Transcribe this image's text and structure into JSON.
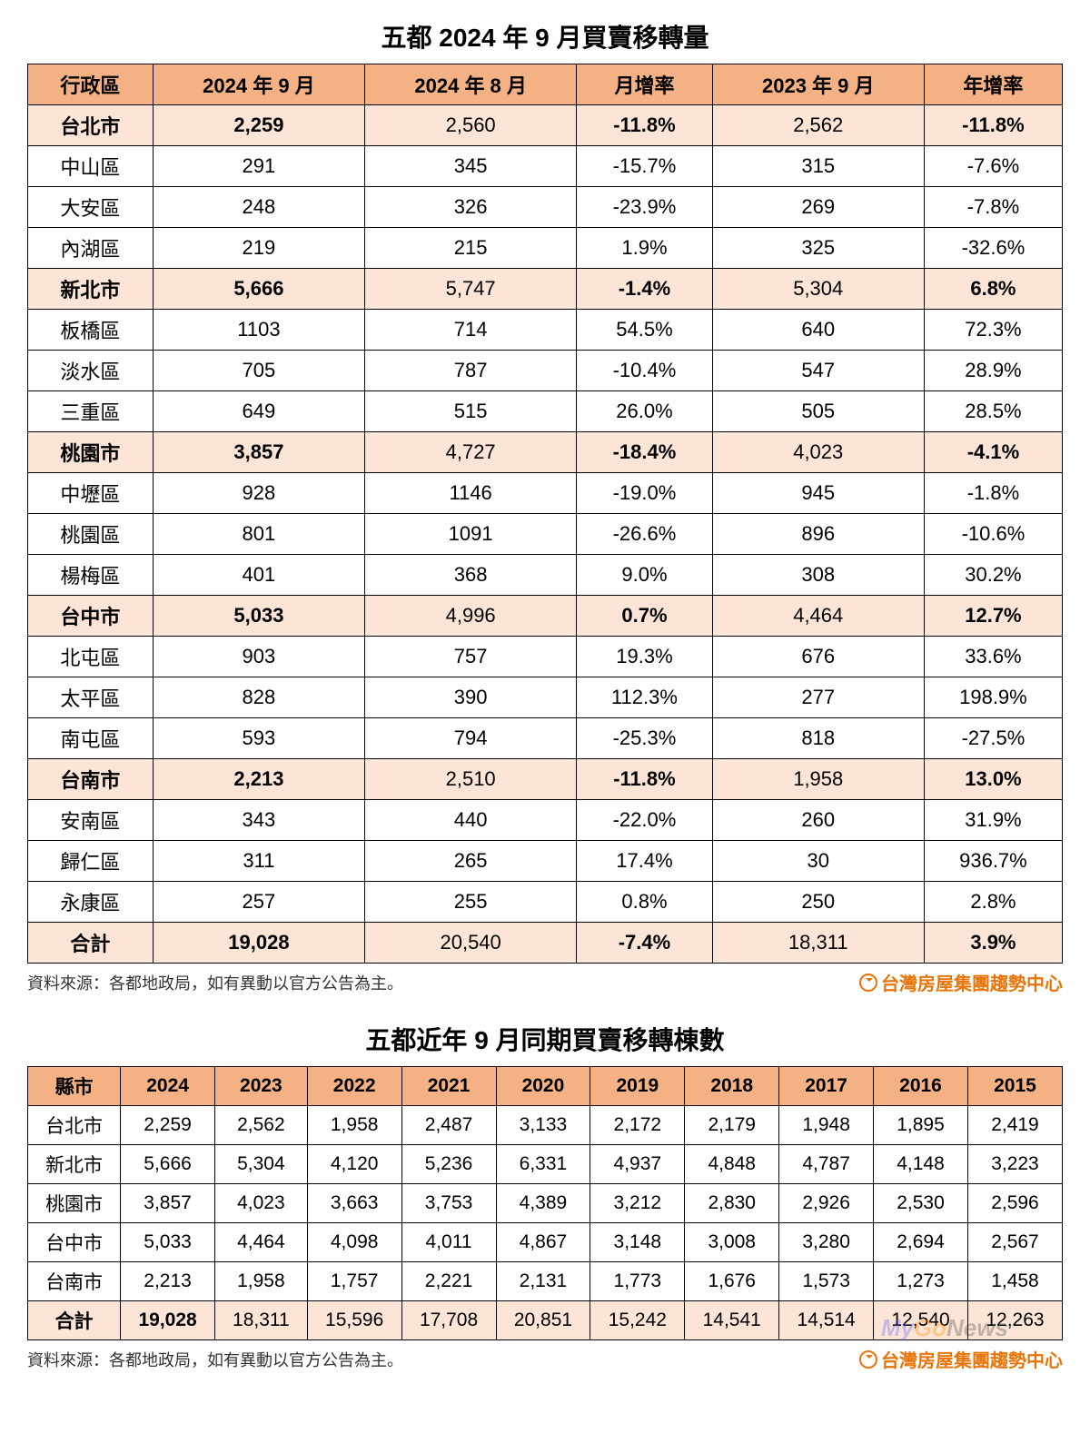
{
  "colors": {
    "header_bg": "#f4b183",
    "highlight_bg": "#fce5d6",
    "border": "#000000",
    "brand": "#e8750a",
    "text": "#000000"
  },
  "typography": {
    "title_fontsize": 28,
    "cell_fontsize": 22,
    "footer_fontsize": 18
  },
  "table1": {
    "title": "五都 2024 年 9 月買賣移轉量",
    "columns": [
      "行政區",
      "2024 年 9 月",
      "2024 年 8 月",
      "月增率",
      "2023 年 9 月",
      "年增率"
    ],
    "col_bold": [
      false,
      true,
      false,
      false,
      false,
      false
    ],
    "rows": [
      {
        "hl": true,
        "bold": true,
        "cells": [
          "台北市",
          "2,259",
          "2,560",
          "-11.8%",
          "2,562",
          "-11.8%"
        ]
      },
      {
        "hl": false,
        "bold": false,
        "cells": [
          "中山區",
          "291",
          "345",
          "-15.7%",
          "315",
          "-7.6%"
        ]
      },
      {
        "hl": false,
        "bold": false,
        "cells": [
          "大安區",
          "248",
          "326",
          "-23.9%",
          "269",
          "-7.8%"
        ]
      },
      {
        "hl": false,
        "bold": false,
        "cells": [
          "內湖區",
          "219",
          "215",
          "1.9%",
          "325",
          "-32.6%"
        ]
      },
      {
        "hl": true,
        "bold": true,
        "cells": [
          "新北市",
          "5,666",
          "5,747",
          "-1.4%",
          "5,304",
          "6.8%"
        ]
      },
      {
        "hl": false,
        "bold": false,
        "cells": [
          "板橋區",
          "1103",
          "714",
          "54.5%",
          "640",
          "72.3%"
        ]
      },
      {
        "hl": false,
        "bold": false,
        "cells": [
          "淡水區",
          "705",
          "787",
          "-10.4%",
          "547",
          "28.9%"
        ]
      },
      {
        "hl": false,
        "bold": false,
        "cells": [
          "三重區",
          "649",
          "515",
          "26.0%",
          "505",
          "28.5%"
        ]
      },
      {
        "hl": true,
        "bold": true,
        "cells": [
          "桃園市",
          "3,857",
          "4,727",
          "-18.4%",
          "4,023",
          "-4.1%"
        ]
      },
      {
        "hl": false,
        "bold": false,
        "cells": [
          "中壢區",
          "928",
          "1146",
          "-19.0%",
          "945",
          "-1.8%"
        ]
      },
      {
        "hl": false,
        "bold": false,
        "cells": [
          "桃園區",
          "801",
          "1091",
          "-26.6%",
          "896",
          "-10.6%"
        ]
      },
      {
        "hl": false,
        "bold": false,
        "cells": [
          "楊梅區",
          "401",
          "368",
          "9.0%",
          "308",
          "30.2%"
        ]
      },
      {
        "hl": true,
        "bold": true,
        "cells": [
          "台中市",
          "5,033",
          "4,996",
          "0.7%",
          "4,464",
          "12.7%"
        ]
      },
      {
        "hl": false,
        "bold": false,
        "cells": [
          "北屯區",
          "903",
          "757",
          "19.3%",
          "676",
          "33.6%"
        ]
      },
      {
        "hl": false,
        "bold": false,
        "cells": [
          "太平區",
          "828",
          "390",
          "112.3%",
          "277",
          "198.9%"
        ]
      },
      {
        "hl": false,
        "bold": false,
        "cells": [
          "南屯區",
          "593",
          "794",
          "-25.3%",
          "818",
          "-27.5%"
        ]
      },
      {
        "hl": true,
        "bold": true,
        "cells": [
          "台南市",
          "2,213",
          "2,510",
          "-11.8%",
          "1,958",
          "13.0%"
        ]
      },
      {
        "hl": false,
        "bold": false,
        "cells": [
          "安南區",
          "343",
          "440",
          "-22.0%",
          "260",
          "31.9%"
        ]
      },
      {
        "hl": false,
        "bold": false,
        "cells": [
          "歸仁區",
          "311",
          "265",
          "17.4%",
          "30",
          "936.7%"
        ]
      },
      {
        "hl": false,
        "bold": false,
        "cells": [
          "永康區",
          "257",
          "255",
          "0.8%",
          "250",
          "2.8%"
        ]
      },
      {
        "hl": true,
        "bold": true,
        "cells": [
          "合計",
          "19,028",
          "20,540",
          "-7.4%",
          "18,311",
          "3.9%"
        ]
      }
    ],
    "bold_cols_on_hl": [
      1,
      3,
      5
    ]
  },
  "table2": {
    "title": "五都近年 9 月同期買賣移轉棟數",
    "columns": [
      "縣市",
      "2024",
      "2023",
      "2022",
      "2021",
      "2020",
      "2019",
      "2018",
      "2017",
      "2016",
      "2015"
    ],
    "rows": [
      {
        "hl": false,
        "cells": [
          "台北市",
          "2,259",
          "2,562",
          "1,958",
          "2,487",
          "3,133",
          "2,172",
          "2,179",
          "1,948",
          "1,895",
          "2,419"
        ]
      },
      {
        "hl": false,
        "cells": [
          "新北市",
          "5,666",
          "5,304",
          "4,120",
          "5,236",
          "6,331",
          "4,937",
          "4,848",
          "4,787",
          "4,148",
          "3,223"
        ]
      },
      {
        "hl": false,
        "cells": [
          "桃園市",
          "3,857",
          "4,023",
          "3,663",
          "3,753",
          "4,389",
          "3,212",
          "2,830",
          "2,926",
          "2,530",
          "2,596"
        ]
      },
      {
        "hl": false,
        "cells": [
          "台中市",
          "5,033",
          "4,464",
          "4,098",
          "4,011",
          "4,867",
          "3,148",
          "3,008",
          "3,280",
          "2,694",
          "2,567"
        ]
      },
      {
        "hl": false,
        "cells": [
          "台南市",
          "2,213",
          "1,958",
          "1,757",
          "2,221",
          "2,131",
          "1,773",
          "1,676",
          "1,573",
          "1,273",
          "1,458"
        ]
      },
      {
        "hl": true,
        "cells": [
          "合計",
          "19,028",
          "18,311",
          "15,596",
          "17,708",
          "20,851",
          "15,242",
          "14,541",
          "14,514",
          "12,540",
          "12,263"
        ]
      }
    ],
    "total_bold_col": 1
  },
  "source_text": "資料來源：各都地政局，如有異動以官方公告為主。",
  "brand_text": "台灣房屋集團趨勢中心",
  "watermark": {
    "my": "My",
    "go": "Go",
    "news": "News"
  }
}
